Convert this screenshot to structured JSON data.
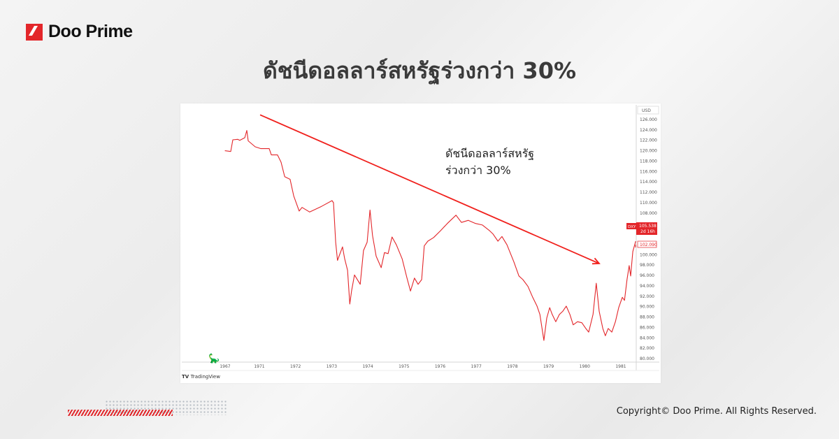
{
  "brand": {
    "name": "Doo Prime",
    "color": "#e3262a"
  },
  "page_title": "ดัชนีดอลลาร์สหรัฐร่วงกว่า 30%",
  "footer": {
    "copyright": "Copyright© Doo Prime. All Rights Reserved."
  },
  "chart_data": {
    "type": "line",
    "title": "",
    "symbol": "DXY",
    "currency_label": "USD",
    "source_label": "TradingView",
    "line_color": "#e3262a",
    "ylim": [
      80,
      126
    ],
    "y_ticks": [
      "126.000",
      "124.000",
      "122.000",
      "120.000",
      "118.000",
      "116.000",
      "114.000",
      "112.000",
      "110.000",
      "108.000",
      "100.000",
      "98.000",
      "96.000",
      "94.000",
      "92.000",
      "90.000",
      "88.000",
      "86.000",
      "84.000",
      "82.000",
      "80.000"
    ],
    "x_ticks": [
      "1967",
      "1971",
      "1972",
      "1973",
      "1974",
      "1975",
      "1976",
      "1977",
      "1978",
      "1979",
      "1980",
      "1981"
    ],
    "last_price": {
      "value": "105.538",
      "countdown": "2d 16h"
    },
    "prev_close": "102.090",
    "annotation": {
      "text_line1": "ดัชนีดอลลาร์สหรัฐ",
      "text_line2": "ร่วงกว่า 30%",
      "arrow_from": [
        1971.02,
        126.9
      ],
      "arrow_to": [
        1980.4,
        98.3
      ]
    },
    "series": [
      {
        "points": [
          [
            1966.97,
            120.0
          ],
          [
            1967.65,
            119.85
          ],
          [
            1967.9,
            122.1
          ],
          [
            1968.47,
            122.2
          ],
          [
            1968.71,
            122.0
          ],
          [
            1969.29,
            122.5
          ],
          [
            1969.53,
            123.9
          ],
          [
            1969.69,
            121.9
          ],
          [
            1970.51,
            120.75
          ],
          [
            1971.04,
            120.4
          ],
          [
            1971.27,
            120.4
          ],
          [
            1971.33,
            119.2
          ],
          [
            1971.5,
            119.2
          ],
          [
            1971.6,
            117.8
          ],
          [
            1971.7,
            115.0
          ],
          [
            1971.85,
            114.5
          ],
          [
            1971.95,
            111.3
          ],
          [
            1972.1,
            108.4
          ],
          [
            1972.18,
            109.1
          ],
          [
            1972.39,
            108.2
          ],
          [
            1972.72,
            109.3
          ],
          [
            1973.01,
            110.4
          ],
          [
            1973.05,
            110.0
          ],
          [
            1973.11,
            102.4
          ],
          [
            1973.16,
            98.9
          ],
          [
            1973.3,
            101.5
          ],
          [
            1973.36,
            99.2
          ],
          [
            1973.44,
            97.0
          ],
          [
            1973.5,
            90.5
          ],
          [
            1973.55,
            93.0
          ],
          [
            1973.63,
            96.1
          ],
          [
            1973.79,
            94.3
          ],
          [
            1973.88,
            100.8
          ],
          [
            1973.98,
            102.4
          ],
          [
            1974.06,
            108.6
          ],
          [
            1974.13,
            103.7
          ],
          [
            1974.23,
            99.7
          ],
          [
            1974.37,
            97.5
          ],
          [
            1974.46,
            100.4
          ],
          [
            1974.56,
            100.2
          ],
          [
            1974.67,
            103.4
          ],
          [
            1974.79,
            101.9
          ],
          [
            1974.95,
            99.2
          ],
          [
            1975.08,
            95.6
          ],
          [
            1975.18,
            93.0
          ],
          [
            1975.29,
            95.5
          ],
          [
            1975.39,
            94.3
          ],
          [
            1975.49,
            95.2
          ],
          [
            1975.56,
            101.7
          ],
          [
            1975.66,
            102.6
          ],
          [
            1975.82,
            103.3
          ],
          [
            1976.01,
            104.6
          ],
          [
            1976.2,
            106.0
          ],
          [
            1976.44,
            107.6
          ],
          [
            1976.59,
            106.2
          ],
          [
            1976.78,
            106.6
          ],
          [
            1976.98,
            106.0
          ],
          [
            1977.17,
            105.7
          ],
          [
            1977.37,
            104.6
          ],
          [
            1977.46,
            104.0
          ],
          [
            1977.6,
            102.6
          ],
          [
            1977.71,
            103.5
          ],
          [
            1977.85,
            101.9
          ],
          [
            1978.04,
            98.6
          ],
          [
            1978.18,
            95.9
          ],
          [
            1978.29,
            95.2
          ],
          [
            1978.43,
            93.9
          ],
          [
            1978.56,
            91.8
          ],
          [
            1978.68,
            90.1
          ],
          [
            1978.76,
            88.5
          ],
          [
            1978.87,
            83.5
          ],
          [
            1978.95,
            87.8
          ],
          [
            1979.03,
            89.8
          ],
          [
            1979.1,
            88.5
          ],
          [
            1979.2,
            87.1
          ],
          [
            1979.3,
            88.5
          ],
          [
            1979.39,
            89.1
          ],
          [
            1979.49,
            90.1
          ],
          [
            1979.59,
            88.5
          ],
          [
            1979.68,
            86.5
          ],
          [
            1979.8,
            87.1
          ],
          [
            1979.92,
            86.9
          ],
          [
            1980.03,
            85.8
          ],
          [
            1980.11,
            85.1
          ],
          [
            1980.23,
            88.5
          ],
          [
            1980.32,
            94.5
          ],
          [
            1980.4,
            89.1
          ],
          [
            1980.5,
            85.8
          ],
          [
            1980.57,
            84.4
          ],
          [
            1980.65,
            85.8
          ],
          [
            1980.75,
            85.1
          ],
          [
            1980.85,
            87.1
          ],
          [
            1980.94,
            89.8
          ],
          [
            1981.04,
            91.8
          ],
          [
            1981.1,
            91.2
          ],
          [
            1981.17,
            95.2
          ],
          [
            1981.23,
            97.9
          ],
          [
            1981.27,
            95.9
          ],
          [
            1981.33,
            100.6
          ],
          [
            1981.41,
            102.6
          ]
        ]
      }
    ]
  }
}
